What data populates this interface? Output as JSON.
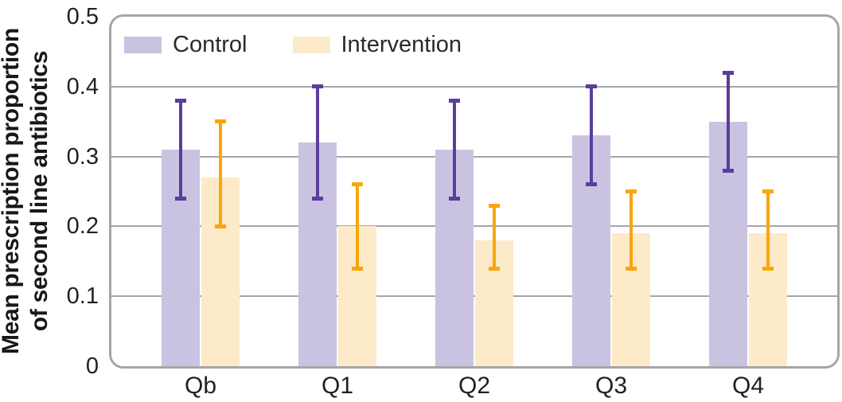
{
  "chart_data": {
    "type": "bar",
    "title": "",
    "xlabel": "",
    "ylabel": "Mean prescription proportion of second line antibiotics",
    "ylabel_lines": [
      "Mean prescription proportion",
      "of second line antibiotics"
    ],
    "categories": [
      "Qb",
      "Q1",
      "Q2",
      "Q3",
      "Q4"
    ],
    "ylim": [
      0,
      0.5
    ],
    "yticks": [
      0,
      0.1,
      0.2,
      0.3,
      0.4,
      0.5
    ],
    "ytick_labels": [
      "0",
      "0.1",
      "0.2",
      "0.3",
      "0.4",
      "0.5"
    ],
    "grid": true,
    "legend_position": "top-left-inside",
    "series": [
      {
        "name": "Control",
        "bar_color": "#c9c3e1",
        "error_bar_color": "#5b3d9c",
        "values": [
          0.31,
          0.32,
          0.31,
          0.33,
          0.35
        ],
        "error_low": [
          0.24,
          0.24,
          0.24,
          0.26,
          0.28
        ],
        "error_high": [
          0.38,
          0.4,
          0.38,
          0.4,
          0.42
        ]
      },
      {
        "name": "Intervention",
        "bar_color": "#fdeac8",
        "error_bar_color": "#f9a60d",
        "values": [
          0.27,
          0.2,
          0.18,
          0.19,
          0.19
        ],
        "error_low": [
          0.2,
          0.14,
          0.14,
          0.14,
          0.14
        ],
        "error_high": [
          0.35,
          0.26,
          0.23,
          0.25,
          0.25
        ]
      }
    ],
    "colors": {
      "grid": "#a6a6a6",
      "plot_border": "#a6a6a6",
      "text": "#231f20"
    }
  }
}
